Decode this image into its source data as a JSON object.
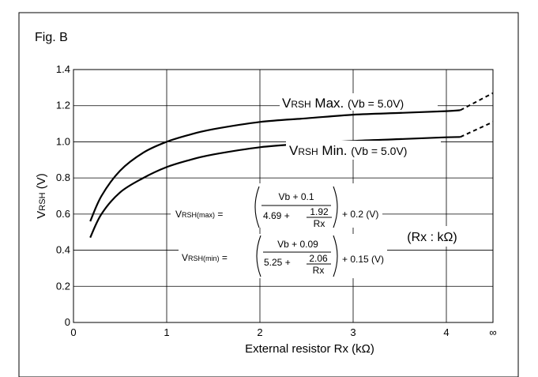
{
  "chart_data": {
    "type": "line",
    "title": "Fig. B",
    "xlabel": "External resistor Rx (kΩ)",
    "ylabel": {
      "main": "V",
      "sub": "RSH",
      "unit": " (V)"
    },
    "xlim": [
      0,
      4.5
    ],
    "ylim": [
      0,
      1.4
    ],
    "x_ticks": [
      "0",
      "1",
      "2",
      "3",
      "4"
    ],
    "x_infinity_tick": "∞",
    "y_ticks": [
      "0",
      "0.2",
      "0.4",
      "0.6",
      "0.8",
      "1.0",
      "1.2",
      "1.4"
    ],
    "grid": true,
    "series": [
      {
        "name": "VRSH Max. (Vb = 5.0V)",
        "x": [
          0.18,
          0.3,
          0.5,
          0.75,
          1.0,
          1.25,
          1.5,
          2.0,
          2.5,
          3.0,
          3.5,
          4.0,
          4.15
        ],
        "y": [
          0.56,
          0.7,
          0.84,
          0.94,
          1.0,
          1.04,
          1.07,
          1.11,
          1.13,
          1.15,
          1.16,
          1.17,
          1.175
        ],
        "asymptote": {
          "x": [
            4.15,
            4.5
          ],
          "y": [
            1.175,
            1.27
          ],
          "style": "dashed"
        }
      },
      {
        "name": "VRSH Min. (Vb = 5.0V)",
        "x": [
          0.18,
          0.3,
          0.5,
          0.75,
          1.0,
          1.25,
          1.5,
          2.0,
          2.5,
          3.0,
          3.5,
          4.0,
          4.15
        ],
        "y": [
          0.47,
          0.6,
          0.72,
          0.8,
          0.86,
          0.9,
          0.93,
          0.97,
          0.99,
          1.005,
          1.015,
          1.025,
          1.027
        ],
        "asymptote": {
          "x": [
            4.15,
            4.5
          ],
          "y": [
            1.027,
            1.11
          ],
          "style": "dashed"
        }
      }
    ],
    "annotations": {
      "max_label": {
        "main": "V",
        "sub": "RSH",
        "text": " Max. ",
        "cond": "(Vb = 5.0V)"
      },
      "min_label": {
        "main": "V",
        "sub": "RSH",
        "text": " Min. ",
        "cond": "(Vb = 5.0V)"
      },
      "units_note": "(Rx : kΩ)",
      "formula_max": {
        "lhs_main": "V",
        "lhs_sub": "RSH(max)",
        "eq": " = ",
        "numerator": "Vb + 0.1",
        "denominator_const": "4.69 +",
        "inner_num": "1.92",
        "inner_den": "Rx",
        "tail": "+ 0.2 (V)"
      },
      "formula_min": {
        "lhs_main": "V",
        "lhs_sub": "RSH(min)",
        "eq": " = ",
        "numerator": "Vb + 0.09",
        "denominator_const": "5.25 +",
        "inner_num": "2.06",
        "inner_den": "Rx",
        "tail": "+ 0.15 (V)"
      }
    }
  }
}
